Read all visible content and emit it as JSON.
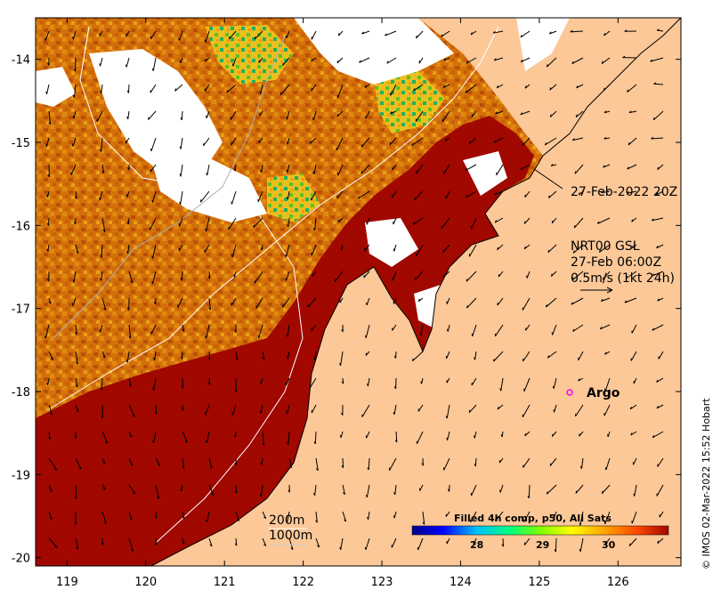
{
  "map": {
    "x_ticks": [
      "119",
      "120",
      "121",
      "122",
      "123",
      "124",
      "125",
      "126"
    ],
    "y_ticks": [
      "-14",
      "-15",
      "-16",
      "-17",
      "-18",
      "-19",
      "-20"
    ],
    "lon_range": [
      118.6,
      126.8
    ],
    "lat_range": [
      -20.1,
      -13.5
    ],
    "land_color": "#fcc898",
    "hot_color": "#a00800",
    "cloud_color": "#ffffff"
  },
  "annotations": {
    "satellite_pass": "27-Feb-2022 20Z",
    "current_title": "NRT00 GSL",
    "current_time": "27-Feb 06:00Z",
    "current_scale": "0.5m/s (1kt 24h)",
    "argo_label": "Argo",
    "contour_200": "200m",
    "contour_1000": "1000m",
    "credit": "© IMOS 02-Mar-2022 15:52 Hobart"
  },
  "colorbar": {
    "title": "Filled 4h comp, p50, All Sats",
    "ticks": [
      "28",
      "29",
      "30"
    ],
    "stops": [
      "#00008b",
      "#0000ff",
      "#00bfff",
      "#00ff80",
      "#7fff00",
      "#ffff00",
      "#ffa500",
      "#ff4500",
      "#a00800"
    ]
  }
}
